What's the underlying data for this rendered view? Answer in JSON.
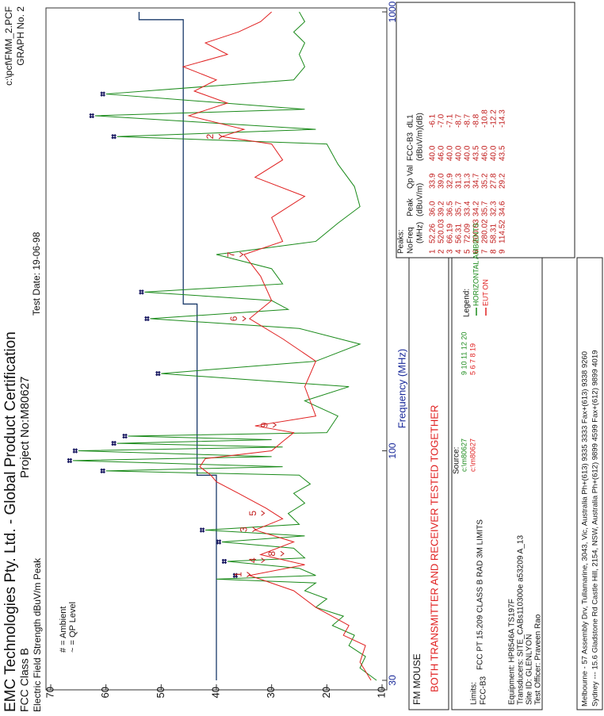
{
  "header": {
    "company": "EMC Technologies Pty. Ltd. -  Global Product Certification",
    "standard": "FCC Class B",
    "project": "Project No:M80627",
    "file": "c:\\pcf\\FMM_2.PCF",
    "graph": "GRAPH No. 2",
    "test_date": "Test Date: 19-06-98"
  },
  "chart_data": {
    "type": "line",
    "ylabel": "Electric Field Strength dBuV/m Peak",
    "xlabel": "Frequency (MHz)",
    "note_ambient": "# = Ambient",
    "note_qp": "~ = QP Level",
    "xscale": "log",
    "xlim": [
      30,
      1000
    ],
    "xticks": [
      30,
      100,
      1000
    ],
    "ylim": [
      10,
      70
    ],
    "yticks": [
      10,
      20,
      30,
      40,
      50,
      60,
      70
    ],
    "series": [
      {
        "name": "HORIZONTAL AMBIENTS",
        "color": "#1a8a1a",
        "x": [
          30,
          32,
          34,
          36,
          38,
          40,
          42,
          44,
          46,
          48,
          50,
          51,
          52,
          54,
          56,
          57,
          60,
          62,
          64,
          66,
          68,
          72,
          76,
          80,
          84,
          88,
          90,
          92,
          95,
          97,
          100,
          102,
          104,
          106,
          108,
          110,
          120,
          130,
          140,
          150,
          160,
          175,
          190,
          200,
          210,
          220,
          230,
          240,
          260,
          280,
          300,
          330,
          360,
          400,
          450,
          500,
          520,
          540,
          580,
          600,
          650,
          700,
          750,
          800,
          850,
          900,
          950,
          1000
        ],
        "values": [
          11,
          14,
          13,
          16,
          15,
          19,
          17,
          22,
          20,
          24,
          22,
          40,
          22,
          25,
          38,
          24,
          26,
          39,
          24,
          42,
          25,
          27,
          24,
          26,
          23,
          25,
          60,
          28,
          66,
          30,
          65,
          28,
          58,
          30,
          56,
          20,
          18,
          24,
          16,
          50,
          22,
          14,
          25,
          52,
          27,
          30,
          53,
          28,
          30,
          40,
          22,
          18,
          14,
          15,
          18,
          20,
          58,
          22,
          62,
          24,
          60,
          26,
          24,
          25,
          24,
          26,
          24,
          25
        ]
      },
      {
        "name": "EUT ON",
        "color": "#e02020",
        "x": [
          30,
          33,
          36,
          38,
          40,
          44,
          48,
          52,
          55,
          58,
          62,
          66,
          70,
          74,
          80,
          85,
          88,
          92,
          96,
          100,
          105,
          110,
          114,
          120,
          140,
          160,
          180,
          200,
          220,
          250,
          280,
          300,
          340,
          380,
          420,
          460,
          500,
          520,
          540,
          580,
          620,
          660,
          700,
          750,
          800,
          850,
          900,
          950,
          1000
        ],
        "values": [
          12,
          14,
          13,
          17,
          16,
          22,
          26,
          34,
          24,
          32,
          26,
          33,
          28,
          31,
          36,
          40,
          41,
          43,
          42,
          30,
          28,
          26,
          33,
          22,
          24,
          22,
          28,
          34,
          30,
          32,
          35,
          28,
          30,
          24,
          33,
          28,
          30,
          39,
          35,
          45,
          38,
          44,
          40,
          46,
          38,
          42,
          36,
          32,
          30
        ]
      }
    ],
    "limit": {
      "color": "#1a3a6a",
      "x": [
        30,
        88,
        88,
        216,
        216,
        960,
        960,
        1000
      ],
      "values": [
        40,
        40,
        43.5,
        43.5,
        46,
        46,
        54,
        54
      ]
    },
    "ambient_peaks": {
      "color": "#14145e",
      "x": [
        52,
        56,
        62,
        66,
        90,
        95,
        100,
        104,
        108,
        150,
        200,
        230,
        520,
        580,
        650
      ],
      "values": [
        36,
        38,
        39,
        42,
        60,
        66,
        65,
        58,
        56,
        50,
        52,
        53,
        58,
        62,
        60
      ]
    }
  },
  "panel": {
    "product": "FM MOUSE",
    "description": "BOTH TRANSMITTER AND RECEIVER TESTED TOGETHER",
    "limits_title": "Limits:",
    "limit_id": "FCC-B3",
    "limit_desc": "FCC PT 15.209 CLASS B RAD 3M LIMITS",
    "legend_title": "Legend:",
    "source_title": "Source:",
    "sources": [
      {
        "path": "c:\\m80627",
        "files": "9  10  11  12  20",
        "color": "#1a8a1a"
      },
      {
        "path": "c:\\m80627",
        "files": "5   6   7   8  19",
        "color": "#e02020"
      }
    ],
    "equipment": [
      "Equipment: HP8546A  TS197F",
      "Transducers:  SITE_CABs110300e a53209   A_13",
      "Site ID: GLENLYON",
      "Test Officer: Praveen Rao"
    ]
  },
  "peaks_table": {
    "title": "Peaks:",
    "header": [
      "No",
      "Freq",
      "Peak",
      "Qp Val",
      "FCC-B3",
      "dL1"
    ],
    "units": [
      "(MHz)",
      "(dBuV/m)",
      "(dBuV/m)",
      "(dB)"
    ],
    "rows": [
      [
        "1",
        "52.26",
        "36.0",
        "33.9",
        "40.0",
        "-6.1"
      ],
      [
        "2",
        "520.03",
        "39.2",
        "39.0",
        "46.0",
        "-7.0"
      ],
      [
        "3",
        "66.19",
        "36.5",
        "32.9",
        "40.0",
        "-7.1"
      ],
      [
        "4",
        "56.31",
        "35.7",
        "31.3",
        "40.0",
        "-8.7"
      ],
      [
        "5",
        "72.09",
        "33.4",
        "31.3",
        "40.0",
        "-8.7"
      ],
      [
        "6",
        "200.03",
        "34.2",
        "34.7",
        "43.5",
        "-8.8"
      ],
      [
        "7",
        "280.02",
        "35.7",
        "35.2",
        "46.0",
        "-10.8"
      ],
      [
        "8",
        "58.31",
        "32.3",
        "27.8",
        "40.0",
        "-12.2"
      ],
      [
        "9",
        "114.52",
        "34.6",
        "29.2",
        "43.5",
        "-14.3"
      ]
    ]
  },
  "footer": [
    "Melbourne - 57 Assembly Drv, Tullamarine, 3043, Vic, Australia  Ph+(613) 9335 3333  Fax+(613) 9338 9260",
    "Sydney --- 15.6 Gladstone Rd Castle Hill, 2154, NSW, Australia  Ph+(612) 9899 4599  Fax+(612) 9899 4019"
  ]
}
